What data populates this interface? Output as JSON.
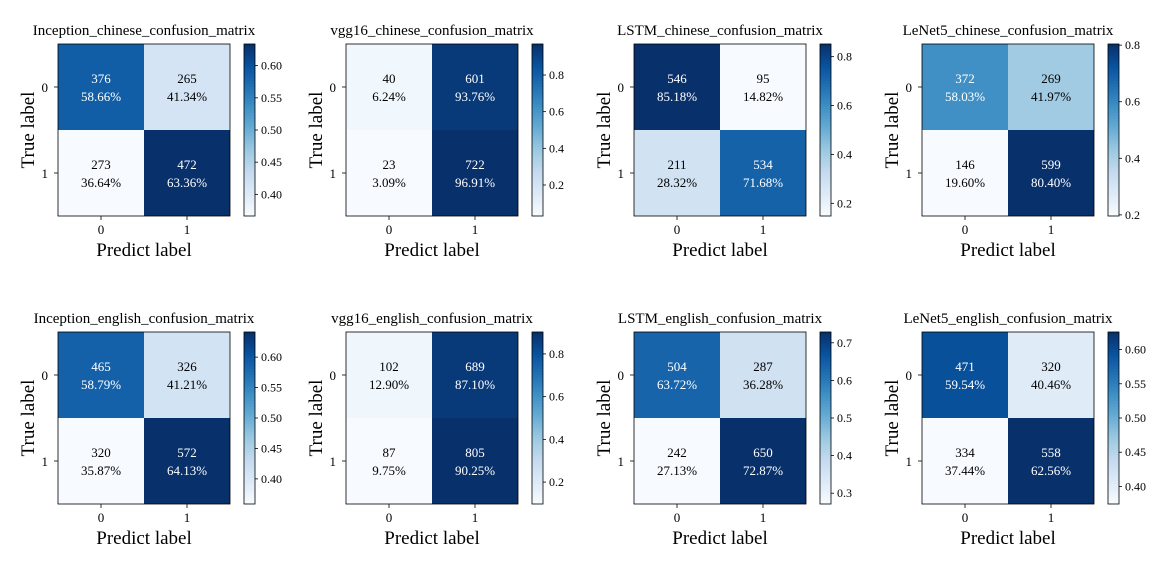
{
  "chart_data": [
    {
      "type": "heatmap",
      "title": "Inception_chinese_confusion_matrix",
      "xlabel": "Predict label",
      "ylabel": "True label",
      "x_ticks": [
        "0",
        "1"
      ],
      "y_ticks": [
        "0",
        "1"
      ],
      "counts": [
        [
          376,
          265
        ],
        [
          273,
          472
        ]
      ],
      "percents": [
        [
          "58.66%",
          "41.34%"
        ],
        [
          "36.64%",
          "63.36%"
        ]
      ],
      "colorbar": {
        "min": 0.3664,
        "max": 0.6336,
        "ticks": [
          "0.40",
          "0.45",
          "0.50",
          "0.55",
          "0.60"
        ]
      }
    },
    {
      "type": "heatmap",
      "title": "vgg16_chinese_confusion_matrix",
      "xlabel": "Predict label",
      "ylabel": "True label",
      "x_ticks": [
        "0",
        "1"
      ],
      "y_ticks": [
        "0",
        "1"
      ],
      "counts": [
        [
          40,
          601
        ],
        [
          23,
          722
        ]
      ],
      "percents": [
        [
          "6.24%",
          "93.76%"
        ],
        [
          "3.09%",
          "96.91%"
        ]
      ],
      "colorbar": {
        "min": 0.0309,
        "max": 0.9691,
        "ticks": [
          "0.2",
          "0.4",
          "0.6",
          "0.8"
        ]
      }
    },
    {
      "type": "heatmap",
      "title": "LSTM_chinese_confusion_matrix",
      "xlabel": "Predict label",
      "ylabel": "True label",
      "x_ticks": [
        "0",
        "1"
      ],
      "y_ticks": [
        "0",
        "1"
      ],
      "counts": [
        [
          546,
          95
        ],
        [
          211,
          534
        ]
      ],
      "percents": [
        [
          "85.18%",
          "14.82%"
        ],
        [
          "28.32%",
          "71.68%"
        ]
      ],
      "colorbar": {
        "min": 0.1482,
        "max": 0.8518,
        "ticks": [
          "0.2",
          "0.4",
          "0.6",
          "0.8"
        ]
      }
    },
    {
      "type": "heatmap",
      "title": "LeNet5_chinese_confusion_matrix",
      "xlabel": "Predict label",
      "ylabel": "True label",
      "x_ticks": [
        "0",
        "1"
      ],
      "y_ticks": [
        "0",
        "1"
      ],
      "counts": [
        [
          372,
          269
        ],
        [
          146,
          599
        ]
      ],
      "percents": [
        [
          "58.03%",
          "41.97%"
        ],
        [
          "19.60%",
          "80.40%"
        ]
      ],
      "colorbar": {
        "min": 0.196,
        "max": 0.804,
        "ticks": [
          "0.2",
          "0.4",
          "0.6",
          "0.8"
        ]
      }
    },
    {
      "type": "heatmap",
      "title": "Inception_english_confusion_matrix",
      "xlabel": "Predict label",
      "ylabel": "True label",
      "x_ticks": [
        "0",
        "1"
      ],
      "y_ticks": [
        "0",
        "1"
      ],
      "counts": [
        [
          465,
          326
        ],
        [
          320,
          572
        ]
      ],
      "percents": [
        [
          "58.79%",
          "41.21%"
        ],
        [
          "35.87%",
          "64.13%"
        ]
      ],
      "colorbar": {
        "min": 0.3587,
        "max": 0.6413,
        "ticks": [
          "0.40",
          "0.45",
          "0.50",
          "0.55",
          "0.60"
        ]
      }
    },
    {
      "type": "heatmap",
      "title": "vgg16_english_confusion_matrix",
      "xlabel": "Predict label",
      "ylabel": "True label",
      "x_ticks": [
        "0",
        "1"
      ],
      "y_ticks": [
        "0",
        "1"
      ],
      "counts": [
        [
          102,
          689
        ],
        [
          87,
          805
        ]
      ],
      "percents": [
        [
          "12.90%",
          "87.10%"
        ],
        [
          "9.75%",
          "90.25%"
        ]
      ],
      "colorbar": {
        "min": 0.0975,
        "max": 0.9025,
        "ticks": [
          "0.2",
          "0.4",
          "0.6",
          "0.8"
        ]
      }
    },
    {
      "type": "heatmap",
      "title": "LSTM_english_confusion_matrix",
      "xlabel": "Predict label",
      "ylabel": "True label",
      "x_ticks": [
        "0",
        "1"
      ],
      "y_ticks": [
        "0",
        "1"
      ],
      "counts": [
        [
          504,
          287
        ],
        [
          242,
          650
        ]
      ],
      "percents": [
        [
          "63.72%",
          "36.28%"
        ],
        [
          "27.13%",
          "72.87%"
        ]
      ],
      "colorbar": {
        "min": 0.2713,
        "max": 0.7287,
        "ticks": [
          "0.3",
          "0.4",
          "0.5",
          "0.6",
          "0.7"
        ]
      }
    },
    {
      "type": "heatmap",
      "title": "LeNet5_english_confusion_matrix",
      "xlabel": "Predict label",
      "ylabel": "True label",
      "x_ticks": [
        "0",
        "1"
      ],
      "y_ticks": [
        "0",
        "1"
      ],
      "counts": [
        [
          471,
          320
        ],
        [
          334,
          558
        ]
      ],
      "percents": [
        [
          "59.54%",
          "40.46%"
        ],
        [
          "37.44%",
          "62.56%"
        ]
      ],
      "colorbar": {
        "min": 0.3744,
        "max": 0.6256,
        "ticks": [
          "0.40",
          "0.45",
          "0.50",
          "0.55",
          "0.60"
        ]
      }
    }
  ]
}
